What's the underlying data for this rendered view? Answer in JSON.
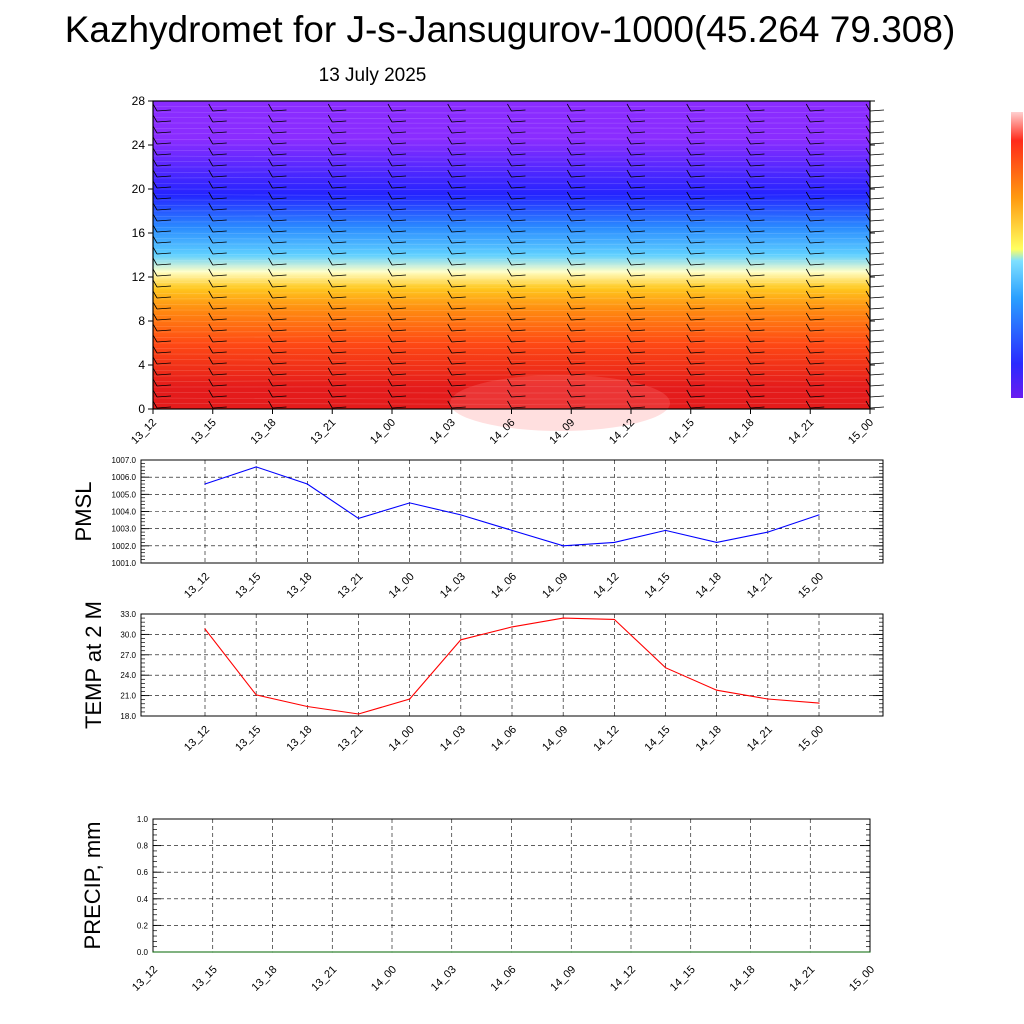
{
  "title": "Kazhydromet for J-s-Jansugurov-1000(45.264 79.308)",
  "date": "13 July 2025",
  "colors": {
    "pmsl_line": "#0000ff",
    "temp_line": "#ff0000",
    "precip_line": "#006400",
    "wind_barb": "#000000"
  },
  "chart_data": [
    {
      "type": "heatmap",
      "title": "",
      "xlabel": "",
      "ylabel": "",
      "x_tick_labels": [
        "13_12",
        "13_15",
        "13_18",
        "13_21",
        "14_00",
        "14_03",
        "14_06",
        "14_09",
        "14_12",
        "14_15",
        "14_18",
        "14_21",
        "15_00"
      ],
      "ylim": [
        0,
        28
      ],
      "y_ticks": [
        0,
        4,
        8,
        12,
        16,
        20,
        24,
        28
      ],
      "color_bands": [
        {
          "from": 0,
          "to": 4,
          "color": "#e41b1b"
        },
        {
          "from": 4,
          "to": 8,
          "color": "#ff4a14"
        },
        {
          "from": 8,
          "to": 10,
          "color": "#ff8a10"
        },
        {
          "from": 10,
          "to": 12,
          "color": "#ffc81e"
        },
        {
          "from": 12,
          "to": 13,
          "color": "#ffffc8"
        },
        {
          "from": 13,
          "to": 15,
          "color": "#5fd0ff"
        },
        {
          "from": 15,
          "to": 18,
          "color": "#2a8cff"
        },
        {
          "from": 18,
          "to": 21,
          "color": "#2424ff"
        },
        {
          "from": 21,
          "to": 28,
          "color": "#8a2cff"
        }
      ],
      "wind_barbs": true,
      "legend": "right"
    },
    {
      "type": "line",
      "ylabel": "PMSL",
      "xlabel": "",
      "categories": [
        "13_12",
        "13_15",
        "13_18",
        "13_21",
        "14_00",
        "14_03",
        "14_06",
        "14_09",
        "14_12",
        "14_15",
        "14_18",
        "14_21",
        "15_00"
      ],
      "values": [
        1005.6,
        1006.6,
        1005.6,
        1003.6,
        1004.5,
        1003.8,
        1002.9,
        1002.0,
        1002.2,
        1002.9,
        1002.2,
        1002.8,
        1003.8
      ],
      "ylim": [
        1001.0,
        1007.0
      ],
      "y_ticks": [
        "1001.0",
        "1002.0",
        "1003.0",
        "1004.0",
        "1005.0",
        "1006.0",
        "1007.0"
      ],
      "grid": true
    },
    {
      "type": "line",
      "ylabel": "TEMP at 2 M",
      "xlabel": "",
      "categories": [
        "13_12",
        "13_15",
        "13_18",
        "13_21",
        "14_00",
        "14_03",
        "14_06",
        "14_09",
        "14_12",
        "14_15",
        "14_18",
        "14_21",
        "15_00"
      ],
      "values": [
        30.8,
        21.1,
        19.4,
        18.3,
        20.5,
        29.2,
        31.1,
        32.4,
        32.2,
        25.1,
        21.8,
        20.5,
        19.9
      ],
      "ylim": [
        18.0,
        33.0
      ],
      "y_ticks": [
        "18.0",
        "21.0",
        "24.0",
        "27.0",
        "30.0",
        "33.0"
      ],
      "grid": true
    },
    {
      "type": "line",
      "ylabel": "PRECIP, mm",
      "xlabel": "",
      "categories": [
        "13_12",
        "13_15",
        "13_18",
        "13_21",
        "14_00",
        "14_03",
        "14_06",
        "14_09",
        "14_12",
        "14_15",
        "14_18",
        "14_21",
        "15_00"
      ],
      "values": [
        0,
        0,
        0,
        0,
        0,
        0,
        0,
        0,
        0,
        0,
        0,
        0,
        0
      ],
      "ylim": [
        0.0,
        1.0
      ],
      "y_ticks": [
        "0.0",
        "0.2",
        "0.4",
        "0.6",
        "0.8",
        "1.0"
      ],
      "grid": true
    }
  ]
}
